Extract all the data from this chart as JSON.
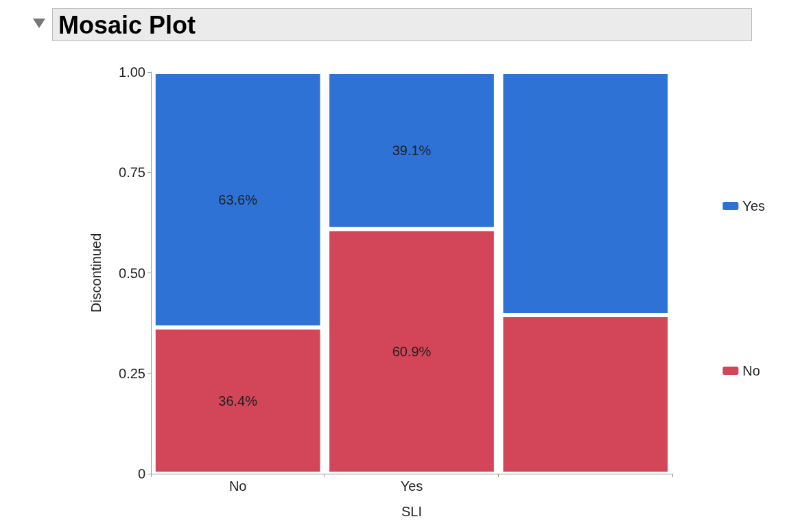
{
  "chart_data": {
    "type": "bar",
    "stacked": true,
    "title": "Mosaic Plot",
    "xlabel": "SLI",
    "ylabel": "Discontinued",
    "categories": [
      "No",
      "Yes",
      null
    ],
    "series": [
      {
        "name": "No",
        "color": "#d34558",
        "values": [
          0.364,
          0.609,
          0.395
        ],
        "value_labels": [
          "36.4%",
          "60.9%",
          null
        ]
      },
      {
        "name": "Yes",
        "color": "#2f72d6",
        "values": [
          0.636,
          0.391,
          0.605
        ],
        "value_labels": [
          "63.6%",
          "39.1%",
          null
        ]
      }
    ],
    "ylim": [
      0,
      1
    ],
    "yticks": [
      0,
      {
        "value": 0.25,
        "label": "0.25"
      },
      {
        "value": 0.5,
        "label": "0.50"
      },
      {
        "value": 0.75,
        "label": "0.75"
      },
      {
        "value": 1,
        "label": "1.00"
      }
    ],
    "grid": false,
    "legend": "right"
  }
}
